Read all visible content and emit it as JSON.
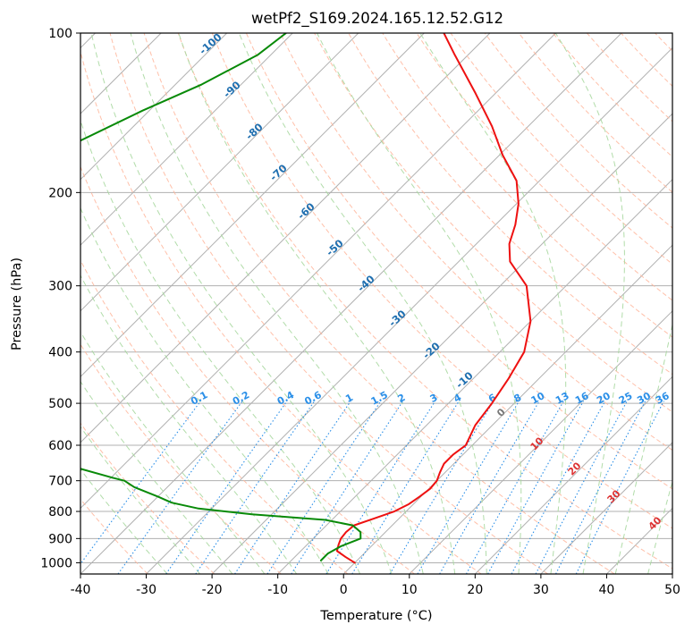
{
  "chart_data": {
    "type": "line",
    "chart_kind": "skew-t log-p diagram",
    "title": "wetPf2_S169.2024.165.12.52.G12",
    "xlabel": "Temperature (°C)",
    "ylabel": "Pressure (hPa)",
    "xlim": [
      -40,
      50
    ],
    "ylim_pressure": [
      1050,
      100
    ],
    "y_scale": "log",
    "grid": true,
    "x_ticks": [
      -40,
      -30,
      -20,
      -10,
      0,
      10,
      20,
      30,
      40,
      50
    ],
    "y_ticks": [
      1000,
      900,
      800,
      700,
      600,
      500,
      400,
      300,
      200,
      100
    ],
    "series": [
      {
        "key": "temperature",
        "color": "#ee1111",
        "points": [
          [
            1000,
            0.0
          ],
          [
            975,
            -2.3
          ],
          [
            950,
            -4.5
          ],
          [
            925,
            -5.2
          ],
          [
            900,
            -5.8
          ],
          [
            875,
            -6.0
          ],
          [
            850,
            -5.8
          ],
          [
            825,
            -3.8
          ],
          [
            800,
            -1.8
          ],
          [
            775,
            -0.7
          ],
          [
            750,
            -0.2
          ],
          [
            725,
            0.2
          ],
          [
            700,
            0.0
          ],
          [
            675,
            -0.8
          ],
          [
            650,
            -1.5
          ],
          [
            625,
            -1.5
          ],
          [
            600,
            -1.0
          ],
          [
            550,
            -2.6
          ],
          [
            500,
            -3.4
          ],
          [
            450,
            -4.6
          ],
          [
            400,
            -6.3
          ],
          [
            350,
            -10.0
          ],
          [
            300,
            -16.0
          ],
          [
            270,
            -22.2
          ],
          [
            250,
            -25.0
          ],
          [
            230,
            -27.0
          ],
          [
            210,
            -29.7
          ],
          [
            190,
            -33.5
          ],
          [
            170,
            -39.5
          ],
          [
            150,
            -45.5
          ],
          [
            130,
            -53.0
          ],
          [
            110,
            -62.0
          ],
          [
            100,
            -67.0
          ]
        ]
      },
      {
        "key": "dewpoint",
        "color": "#088a08",
        "points": [
          [
            990,
            -5.5
          ],
          [
            960,
            -5.5
          ],
          [
            930,
            -4.6
          ],
          [
            900,
            -2.8
          ],
          [
            875,
            -3.8
          ],
          [
            850,
            -6.0
          ],
          [
            830,
            -11.0
          ],
          [
            810,
            -23.0
          ],
          [
            790,
            -32.0
          ],
          [
            770,
            -37.0
          ],
          [
            750,
            -40.0
          ],
          [
            720,
            -45.0
          ],
          [
            700,
            -47.5
          ],
          [
            690,
            -50.0
          ],
          [
            640,
            -62.0
          ],
          [
            605,
            -72.0
          ],
          [
            590,
            -71.5
          ],
          [
            575,
            -72.0
          ],
          [
            560,
            -75.0
          ],
          [
            540,
            -79.0
          ],
          [
            500,
            -79.0
          ],
          [
            460,
            -80.5
          ],
          [
            430,
            -78.0
          ],
          [
            400,
            -79.0
          ],
          [
            380,
            -81.5
          ],
          [
            350,
            -87.0
          ],
          [
            320,
            -91.0
          ],
          [
            300,
            -93.0
          ],
          [
            270,
            -98.0
          ],
          [
            240,
            -102.5
          ],
          [
            225,
            -106.0
          ],
          [
            210,
            -108.0
          ],
          [
            200,
            -109.0
          ],
          [
            195,
            -114.0
          ],
          [
            185,
            -116.5
          ],
          [
            175,
            -112.0
          ],
          [
            160,
            -106.0
          ],
          [
            140,
            -101.0
          ],
          [
            125,
            -96.0
          ],
          [
            110,
            -92.0
          ],
          [
            100,
            -91.0
          ]
        ]
      }
    ],
    "isotherm_labels": [
      "-100",
      "-90",
      "-80",
      "-70",
      "-60",
      "-50",
      "-40",
      "-30",
      "-20",
      "-10"
    ],
    "mixing_ratio_labels": [
      "0.1",
      "0.2",
      "0.4",
      "0.6",
      "1",
      "1.5",
      "2",
      "3",
      "4",
      "6",
      "8",
      "10",
      "13",
      "16",
      "20",
      "25",
      "30",
      "36"
    ],
    "moist_adiabat_labels": [
      "0",
      "10",
      "20",
      "30",
      "40"
    ],
    "colors": {
      "isotherm_label": "#1f6fb0",
      "mixing_ratio": "#2a8fe8",
      "moist_label_zero": "#777777",
      "moist_label_warm": "#dd3333",
      "grid": "#b0b0b0",
      "dry_adiabat": "#ffb59a",
      "moist_adiabat": "#a8d8a0",
      "reference": "#e6c9a8"
    }
  }
}
